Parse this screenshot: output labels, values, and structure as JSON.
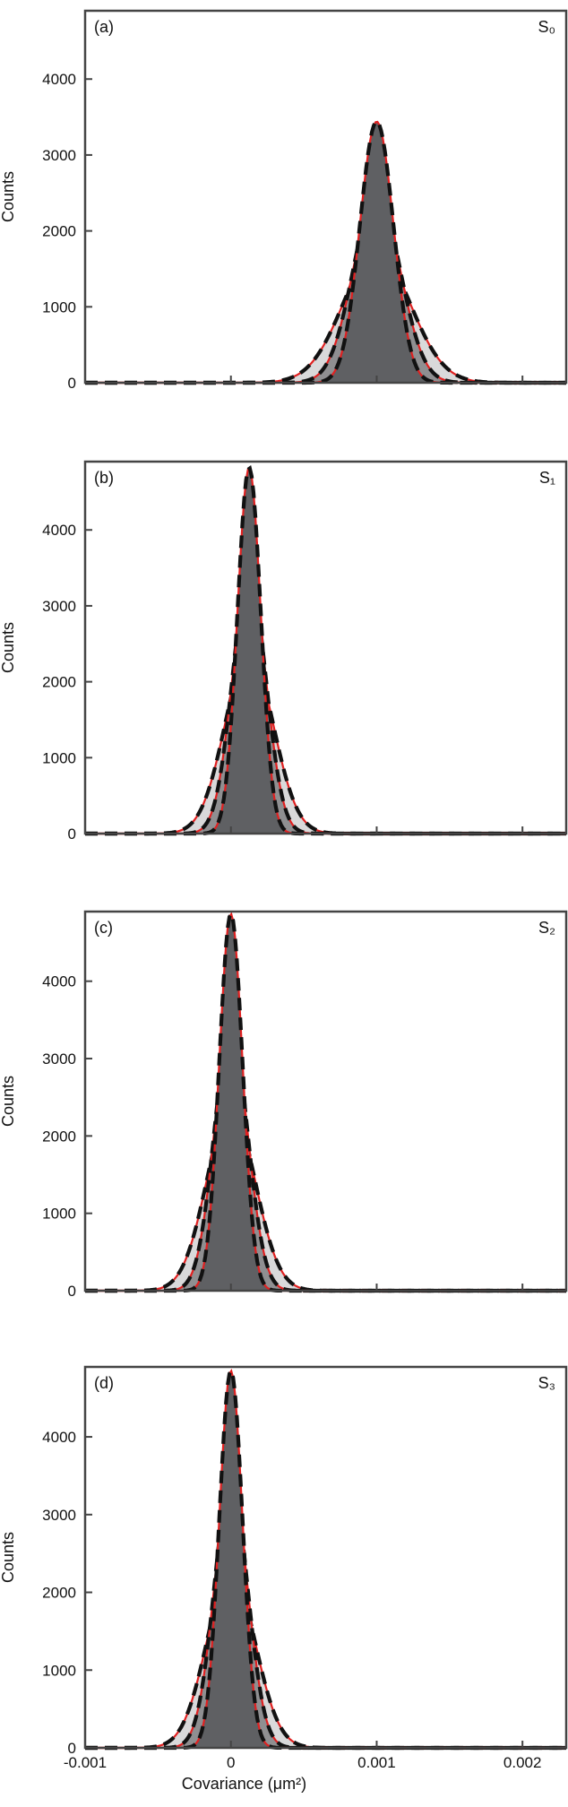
{
  "colors": {
    "frame": "#444444",
    "narrow_fill": "#5f6063",
    "medium_fill": "#8f8f91",
    "wide_fill": "#d9d9da",
    "fit_dash": "#111111",
    "fit_red": "#e02020"
  },
  "shared_x_axis": {
    "xlabel": "Covariance (μm²)",
    "xlim": [
      -0.001,
      0.0023
    ],
    "xticks": [
      -0.001,
      0,
      0.001,
      0.002
    ],
    "xtick_labels": [
      "-0.001",
      "0",
      "0.001",
      "0.002"
    ]
  },
  "chart_data": [
    {
      "type": "area",
      "panel_label": "(a)",
      "corner_label": "S₀",
      "title": "",
      "xlabel": "",
      "ylabel": "Counts",
      "ylim": [
        0,
        4900
      ],
      "yticks": [
        0,
        1000,
        2000,
        3000,
        4000
      ],
      "series": [
        {
          "center": 0.001,
          "sigma": 0.000115,
          "peak": 3440
        },
        {
          "center": 0.001,
          "sigma": 0.00016,
          "peak": 2480
        },
        {
          "center": 0.001,
          "sigma": 0.00023,
          "peak": 1720
        }
      ]
    },
    {
      "type": "area",
      "panel_label": "(b)",
      "corner_label": "S₁",
      "title": "",
      "xlabel": "",
      "ylabel": "Counts",
      "ylim": [
        0,
        4900
      ],
      "yticks": [
        0,
        1000,
        2000,
        3000,
        4000
      ],
      "series": [
        {
          "center": 0.000125,
          "sigma": 8e-05,
          "peak": 4820
        },
        {
          "center": 0.000125,
          "sigma": 0.000115,
          "peak": 3380
        },
        {
          "center": 0.000125,
          "sigma": 0.000165,
          "peak": 2380
        }
      ]
    },
    {
      "type": "area",
      "panel_label": "(c)",
      "corner_label": "S₂",
      "title": "",
      "xlabel": "",
      "ylabel": "Counts",
      "ylim": [
        0,
        4900
      ],
      "yticks": [
        0,
        1000,
        2000,
        3000,
        4000
      ],
      "series": [
        {
          "center": 0.0,
          "sigma": 8e-05,
          "peak": 4870
        },
        {
          "center": 0.0,
          "sigma": 0.000115,
          "peak": 3370
        },
        {
          "center": 0.0,
          "sigma": 0.000165,
          "peak": 2360
        }
      ]
    },
    {
      "type": "area",
      "panel_label": "(d)",
      "corner_label": "S₃",
      "title": "",
      "xlabel": "Covariance (μm²)",
      "ylabel": "Counts",
      "ylim": [
        0,
        4900
      ],
      "yticks": [
        0,
        1000,
        2000,
        3000,
        4000
      ],
      "series": [
        {
          "center": 0.0,
          "sigma": 8e-05,
          "peak": 4850
        },
        {
          "center": 0.0,
          "sigma": 0.000115,
          "peak": 3400
        },
        {
          "center": 0.0,
          "sigma": 0.000165,
          "peak": 2260
        }
      ]
    }
  ]
}
